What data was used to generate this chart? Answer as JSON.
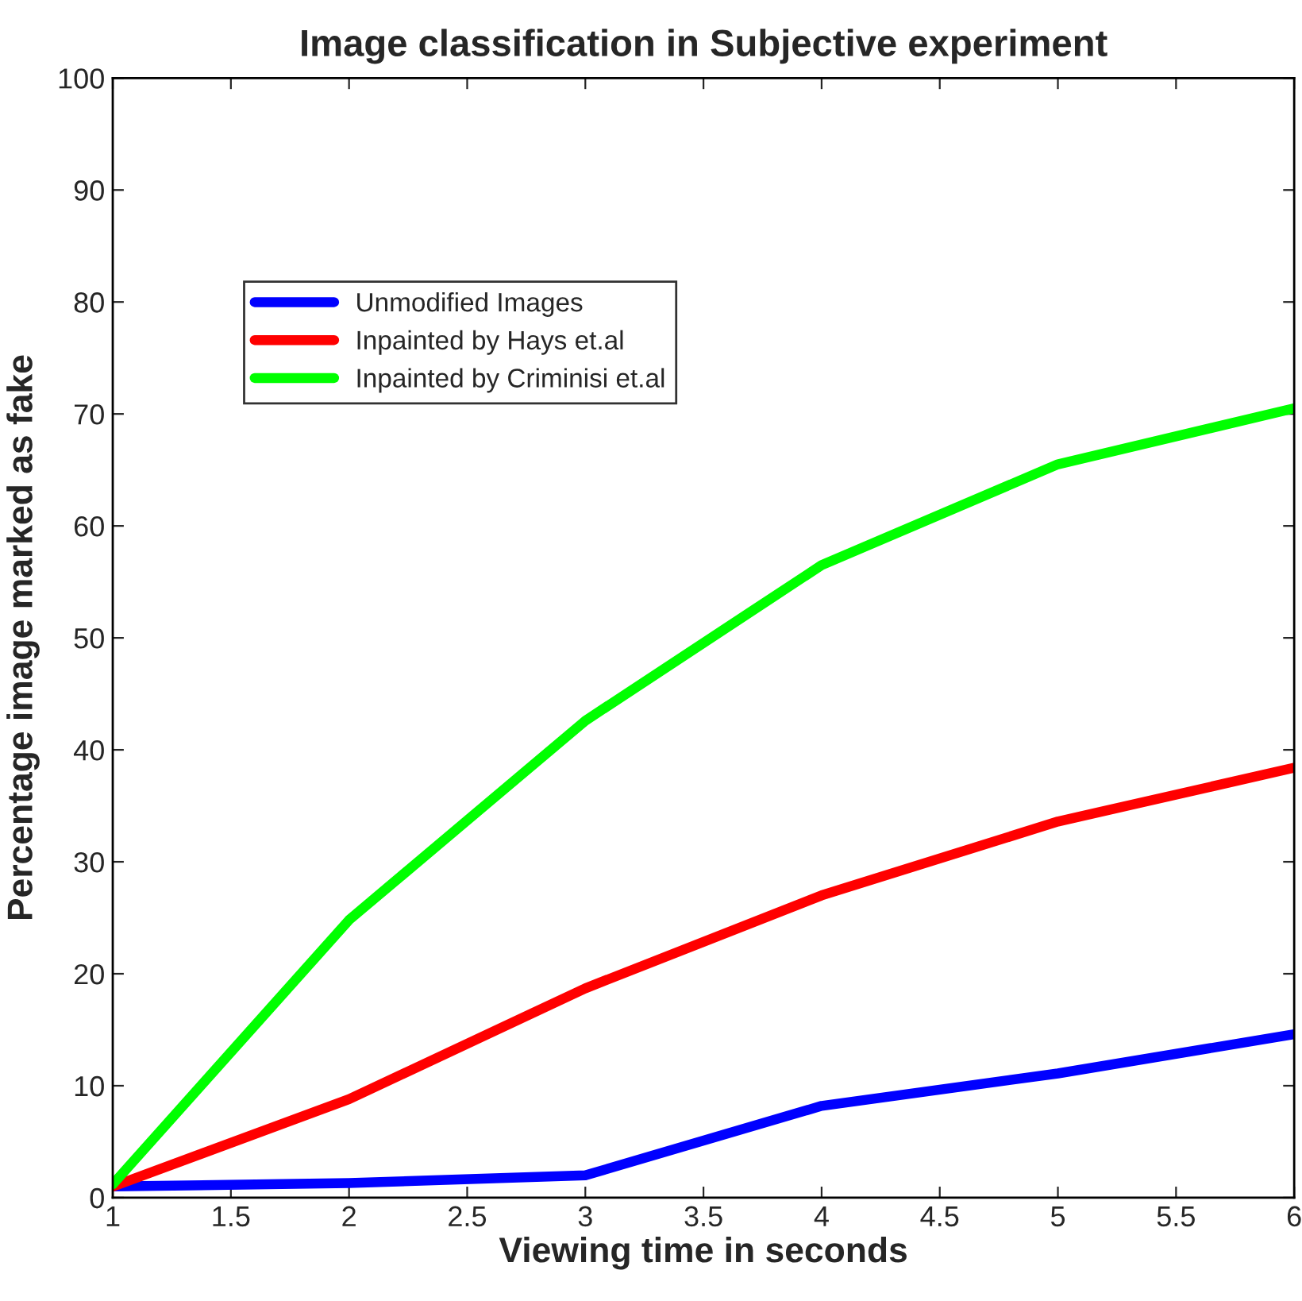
{
  "chart_data": {
    "type": "line",
    "title": "Image classification in Subjective experiment",
    "xlabel": "Viewing time in seconds",
    "ylabel": "Percentage image marked as fake",
    "x": [
      1,
      2,
      3,
      4,
      5,
      6
    ],
    "series": [
      {
        "name": "Unmodified Images",
        "color": "#0000ff",
        "values": [
          1.0,
          1.3,
          2.0,
          8.2,
          11.1,
          14.6
        ]
      },
      {
        "name": "Inpainted by Hays et.al",
        "color": "#ff0000",
        "values": [
          1.0,
          8.8,
          18.7,
          27.0,
          33.6,
          38.4
        ]
      },
      {
        "name": "Inpainted by Criminisi et.al",
        "color": "#00ff00",
        "values": [
          1.2,
          24.8,
          42.6,
          56.5,
          65.5,
          70.5
        ]
      }
    ],
    "xlim": [
      1,
      6
    ],
    "ylim": [
      0,
      100
    ],
    "xticks": [
      1,
      1.5,
      2,
      2.5,
      3,
      3.5,
      4,
      4.5,
      5,
      5.5,
      6
    ],
    "yticks": [
      0,
      10,
      20,
      30,
      40,
      50,
      60,
      70,
      80,
      90,
      100
    ],
    "grid": false,
    "legend": "top left",
    "marker": "none",
    "line_style": "solid"
  }
}
